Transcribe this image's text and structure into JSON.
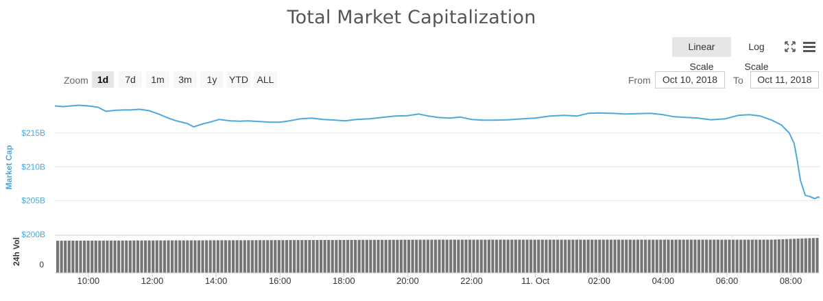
{
  "toolbar": {
    "linear_scale_label": "Linear Scale",
    "log_scale_label": "Log Scale",
    "active_scale": "linear",
    "zoom_label": "Zoom",
    "zoom_options": [
      "1d",
      "7d",
      "1m",
      "3m",
      "1y",
      "YTD",
      "ALL"
    ],
    "active_zoom": "1d",
    "from_label": "From",
    "from_value": "Oct 10, 2018",
    "to_label": "To",
    "to_value": "Oct 11, 2018",
    "fullscreen_icon": "fullscreen-icon",
    "menu_icon": "hamburger-menu-icon"
  },
  "colors": {
    "market_cap_line": "#4aa8dc",
    "volume_bar": "#757575",
    "axis_label": "#4aa8dc",
    "grid": "#e6e6e6"
  },
  "chart_data": {
    "type": "line",
    "title": "Total Market Capitalization",
    "ylabel": "Market Cap",
    "volume_label": "24h Vol",
    "y_ticks": [
      "$200B",
      "$205B",
      "$210B",
      "$215B"
    ],
    "y_tick_values": [
      200,
      205,
      210,
      215
    ],
    "volume_ticks": [
      "0"
    ],
    "x_ticks": [
      "10:00",
      "12:00",
      "14:00",
      "16:00",
      "18:00",
      "20:00",
      "22:00",
      "11. Oct",
      "02:00",
      "04:00",
      "06:00",
      "08:00"
    ],
    "x_tick_hours": [
      10,
      12,
      14,
      16,
      18,
      20,
      22,
      24,
      26,
      28,
      30,
      32
    ],
    "xlim_hours": [
      8.95,
      32.9
    ],
    "ylim": [
      200,
      220
    ],
    "grid": true,
    "series": [
      {
        "name": "Market Cap",
        "unit": "$B",
        "x_hours": [
          8.95,
          9.2,
          9.45,
          9.7,
          10.0,
          10.3,
          10.55,
          10.85,
          11.1,
          11.3,
          11.6,
          11.9,
          12.2,
          12.5,
          12.75,
          13.1,
          13.3,
          13.55,
          13.8,
          14.1,
          14.45,
          14.75,
          15.0,
          15.35,
          15.7,
          16.0,
          16.3,
          16.65,
          17.0,
          17.35,
          17.75,
          18.05,
          18.4,
          18.8,
          19.2,
          19.6,
          20.0,
          20.35,
          20.65,
          20.95,
          21.3,
          21.65,
          22.0,
          22.35,
          22.75,
          23.15,
          23.6,
          24.0,
          24.45,
          24.9,
          25.3,
          25.65,
          26.0,
          26.4,
          26.8,
          27.2,
          27.6,
          28.0,
          28.35,
          28.7,
          29.1,
          29.5,
          29.95,
          30.35,
          30.7,
          31.05,
          31.4,
          31.7,
          31.95,
          32.1,
          32.2,
          32.3,
          32.45,
          32.6,
          32.75,
          32.85,
          32.9
        ],
        "values": [
          219.0,
          218.9,
          219.0,
          219.1,
          219.0,
          218.8,
          218.2,
          218.35,
          218.4,
          218.4,
          218.5,
          218.3,
          217.8,
          217.2,
          216.8,
          216.4,
          215.9,
          216.3,
          216.6,
          217.0,
          216.8,
          216.75,
          216.8,
          216.7,
          216.6,
          216.6,
          216.8,
          217.1,
          217.2,
          217.0,
          216.9,
          216.8,
          217.0,
          217.1,
          217.3,
          217.5,
          217.55,
          217.8,
          217.5,
          217.3,
          217.2,
          217.35,
          217.0,
          216.9,
          216.9,
          216.95,
          217.1,
          217.2,
          217.5,
          217.6,
          217.5,
          217.9,
          217.95,
          217.9,
          217.8,
          217.85,
          217.9,
          217.7,
          217.4,
          217.3,
          217.2,
          216.95,
          217.1,
          217.6,
          217.7,
          217.5,
          216.9,
          216.2,
          215.0,
          213.5,
          211.0,
          208.0,
          205.8,
          205.6,
          205.3,
          205.55,
          205.45
        ]
      },
      {
        "name": "24h Vol",
        "relative_level_start": 0.92,
        "relative_level_mid": 0.95,
        "relative_level_end": 1.0
      }
    ]
  }
}
